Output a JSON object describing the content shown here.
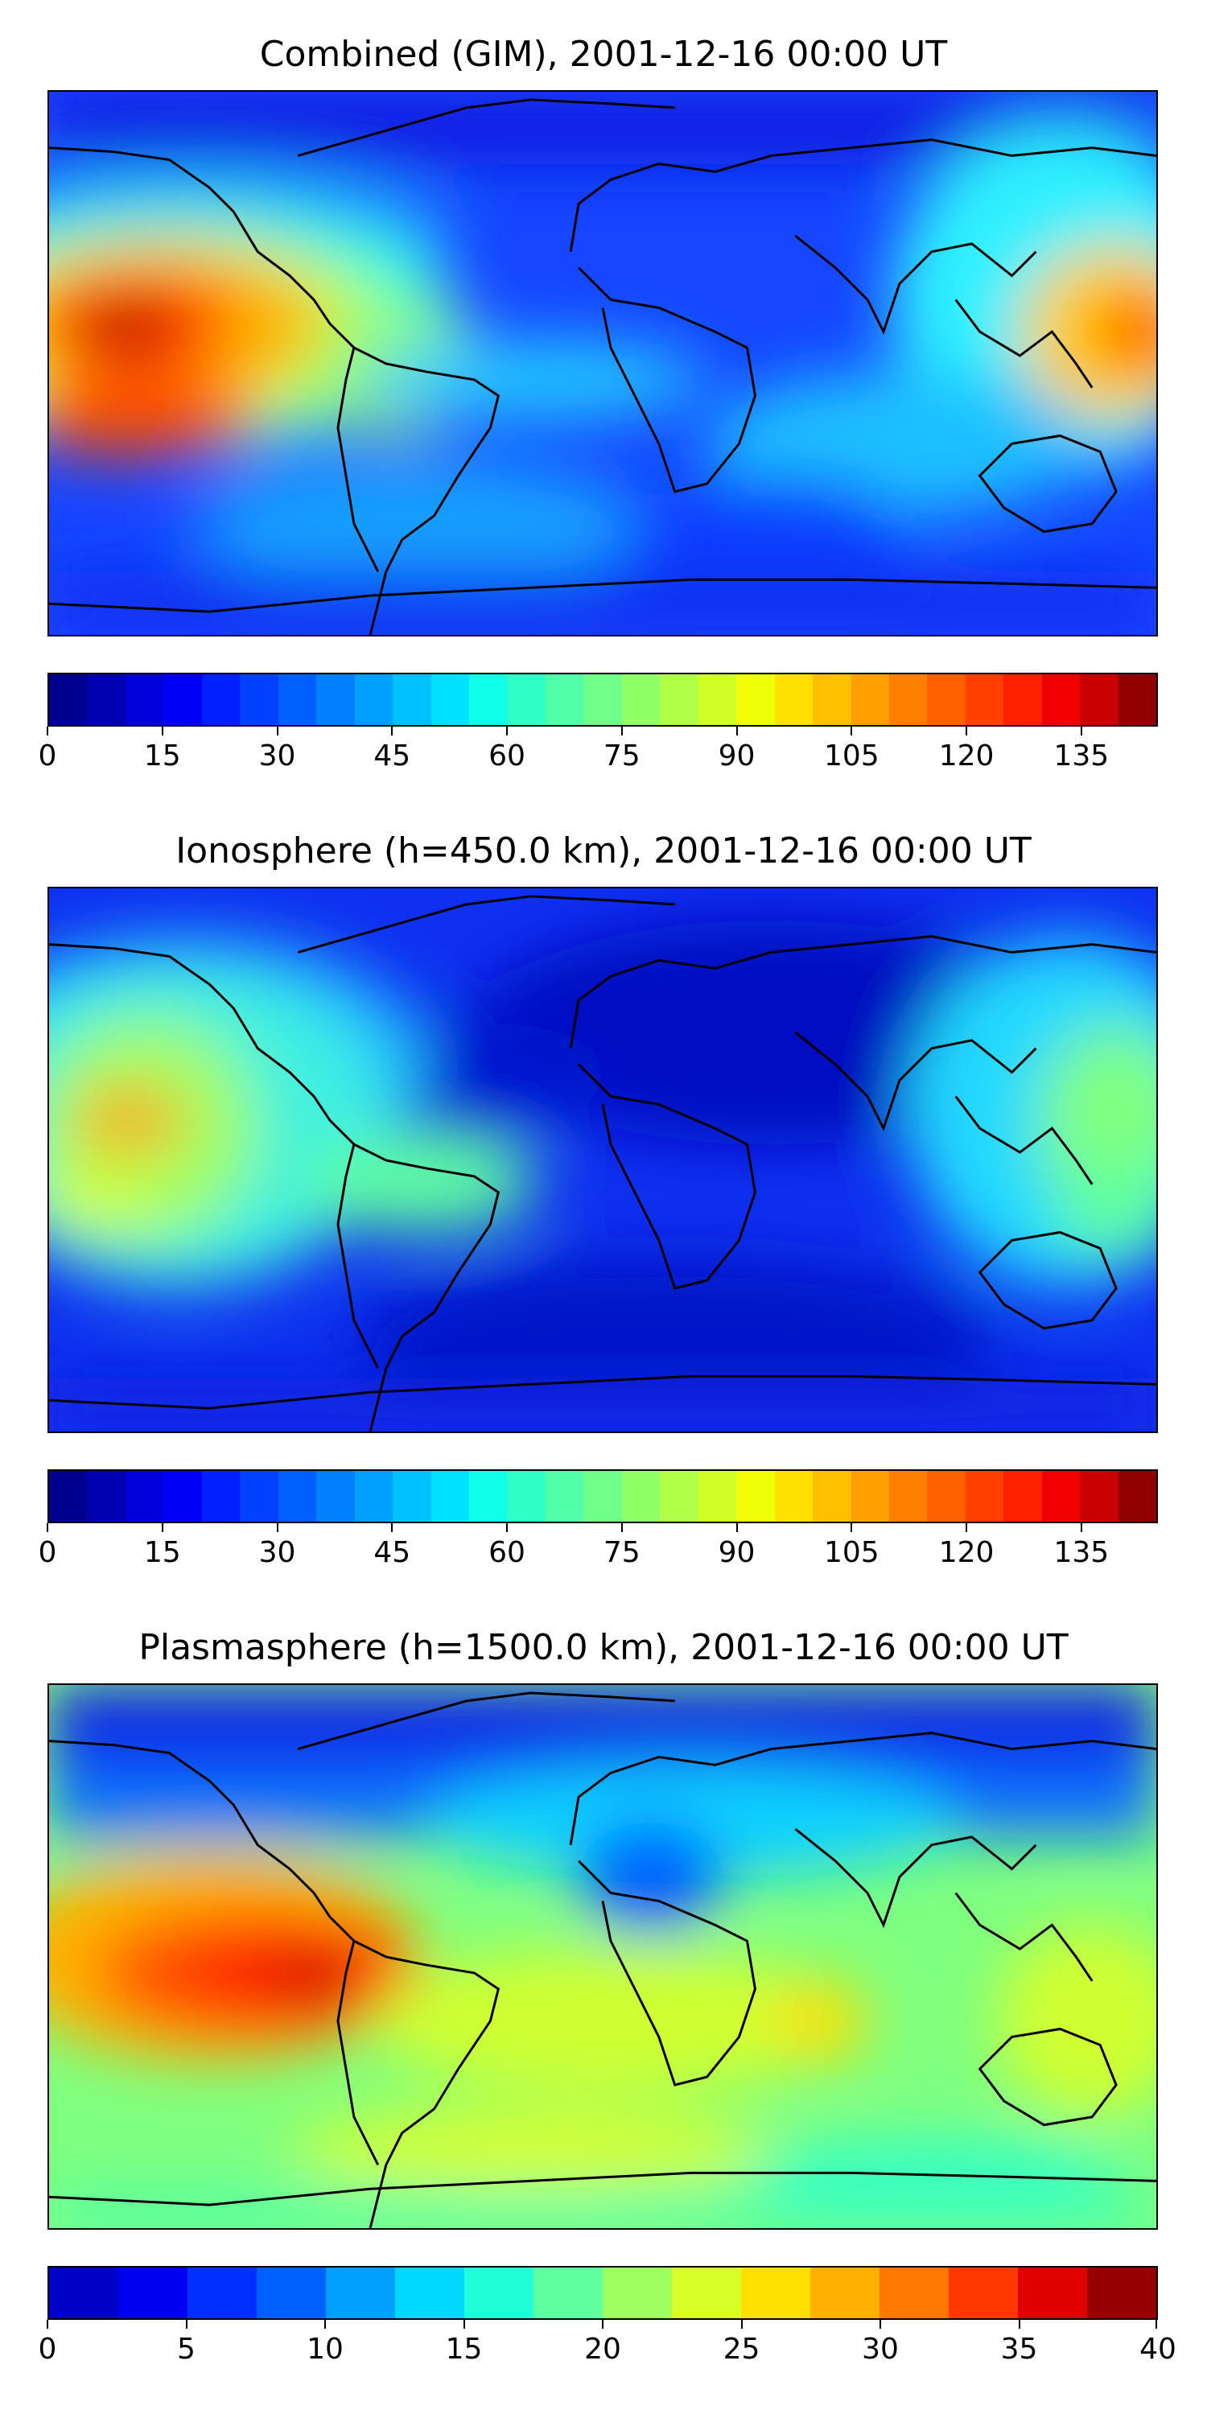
{
  "panels": [
    {
      "title": "Combined (GIM), 2001-12-16 00:00 UT",
      "colorbar": {
        "min": 0,
        "max": 145,
        "levels": 29,
        "tick_labels": [
          "0",
          "15",
          "30",
          "45",
          "60",
          "75",
          "90",
          "105",
          "120",
          "135"
        ],
        "tick_values": [
          0,
          15,
          30,
          45,
          60,
          75,
          90,
          105,
          120,
          135
        ]
      }
    },
    {
      "title": "Ionosphere  (h=450.0 km), 2001-12-16 00:00 UT",
      "colorbar": {
        "min": 0,
        "max": 145,
        "levels": 29,
        "tick_labels": [
          "0",
          "15",
          "30",
          "45",
          "60",
          "75",
          "90",
          "105",
          "120",
          "135"
        ],
        "tick_values": [
          0,
          15,
          30,
          45,
          60,
          75,
          90,
          105,
          120,
          135
        ]
      }
    },
    {
      "title": "Plasmasphere (h=1500.0 km), 2001-12-16 00:00 UT",
      "colorbar": {
        "min": 0,
        "max": 40,
        "levels": 16,
        "tick_labels": [
          "0",
          "5",
          "10",
          "15",
          "20",
          "25",
          "30",
          "35",
          "40"
        ],
        "tick_values": [
          0,
          5,
          10,
          15,
          20,
          25,
          30,
          35,
          40
        ]
      }
    }
  ],
  "colors": {
    "colormap": "jet",
    "coastline": "#000000"
  }
}
